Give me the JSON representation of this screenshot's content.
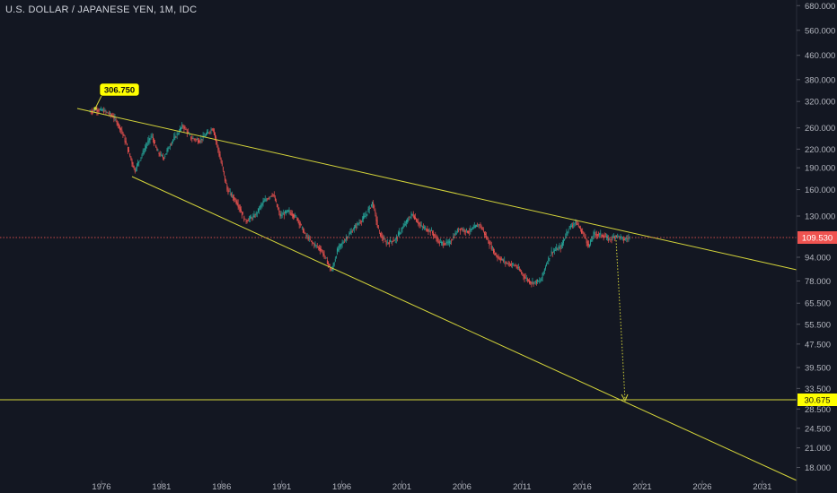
{
  "header": {
    "title": "U.S. DOLLAR / JAPANESE YEN, 1M, IDC"
  },
  "colors": {
    "background": "#131722",
    "axis_text": "#b2b5be",
    "up_candle": "#26a69a",
    "down_candle": "#ef5350",
    "trendline": "#d4d43a",
    "current_price_line": "#ef5350",
    "callout_fill": "#ffff00"
  },
  "chart_data": {
    "type": "line",
    "title": "U.S. DOLLAR / JAPANESE YEN, 1M, IDC",
    "y_scale": "log",
    "y_ticks": [
      "680.000",
      "560.000",
      "460.000",
      "380.000",
      "320.000",
      "260.000",
      "220.000",
      "190.000",
      "160.000",
      "130.000",
      "94.000",
      "78.000",
      "65.500",
      "55.500",
      "47.500",
      "39.500",
      "33.500",
      "28.500",
      "24.500",
      "21.000",
      "18.000"
    ],
    "x_ticks": [
      "1976",
      "1981",
      "1986",
      "1991",
      "1996",
      "2001",
      "2006",
      "2011",
      "2016",
      "2021",
      "2026",
      "2031"
    ],
    "series": [
      {
        "values_by_year": [
          [
            1975.0,
            295
          ],
          [
            1975.6,
            300
          ],
          [
            1976.2,
            298
          ],
          [
            1977.0,
            285
          ],
          [
            1977.7,
            255
          ],
          [
            1978.3,
            215
          ],
          [
            1978.8,
            185
          ],
          [
            1979.5,
            215
          ],
          [
            1980.2,
            245
          ],
          [
            1980.7,
            215
          ],
          [
            1981.2,
            205
          ],
          [
            1981.8,
            230
          ],
          [
            1982.4,
            250
          ],
          [
            1982.8,
            265
          ],
          [
            1983.5,
            240
          ],
          [
            1984.2,
            235
          ],
          [
            1984.9,
            250
          ],
          [
            1985.3,
            260
          ],
          [
            1985.9,
            205
          ],
          [
            1986.5,
            160
          ],
          [
            1987.3,
            145
          ],
          [
            1988.0,
            125
          ],
          [
            1988.8,
            130
          ],
          [
            1989.5,
            145
          ],
          [
            1990.3,
            155
          ],
          [
            1990.9,
            130
          ],
          [
            1991.6,
            135
          ],
          [
            1992.3,
            128
          ],
          [
            1993.0,
            112
          ],
          [
            1993.6,
            105
          ],
          [
            1994.3,
            100
          ],
          [
            1995.2,
            84
          ],
          [
            1995.7,
            100
          ],
          [
            1996.3,
            108
          ],
          [
            1997.2,
            120
          ],
          [
            1998.0,
            130
          ],
          [
            1998.6,
            145
          ],
          [
            1999.1,
            115
          ],
          [
            1999.7,
            105
          ],
          [
            2000.5,
            108
          ],
          [
            2001.3,
            122
          ],
          [
            2001.9,
            132
          ],
          [
            2002.6,
            120
          ],
          [
            2003.5,
            115
          ],
          [
            2004.2,
            105
          ],
          [
            2005.0,
            105
          ],
          [
            2005.8,
            118
          ],
          [
            2006.6,
            115
          ],
          [
            2007.5,
            122
          ],
          [
            2008.3,
            105
          ],
          [
            2008.9,
            95
          ],
          [
            2009.7,
            90
          ],
          [
            2010.5,
            88
          ],
          [
            2011.3,
            80
          ],
          [
            2011.8,
            77
          ],
          [
            2012.6,
            78
          ],
          [
            2013.0,
            88
          ],
          [
            2013.5,
            98
          ],
          [
            2014.3,
            102
          ],
          [
            2014.9,
            118
          ],
          [
            2015.5,
            124
          ],
          [
            2016.2,
            112
          ],
          [
            2016.6,
            102
          ],
          [
            2017.0,
            113
          ],
          [
            2017.7,
            112
          ],
          [
            2018.3,
            108
          ],
          [
            2018.9,
            112
          ],
          [
            2019.5,
            108
          ],
          [
            2019.9,
            109.53
          ]
        ]
      }
    ],
    "current_price": "109.530",
    "target_price": "30.675",
    "annotations": {
      "peak_label": "306.750"
    }
  }
}
